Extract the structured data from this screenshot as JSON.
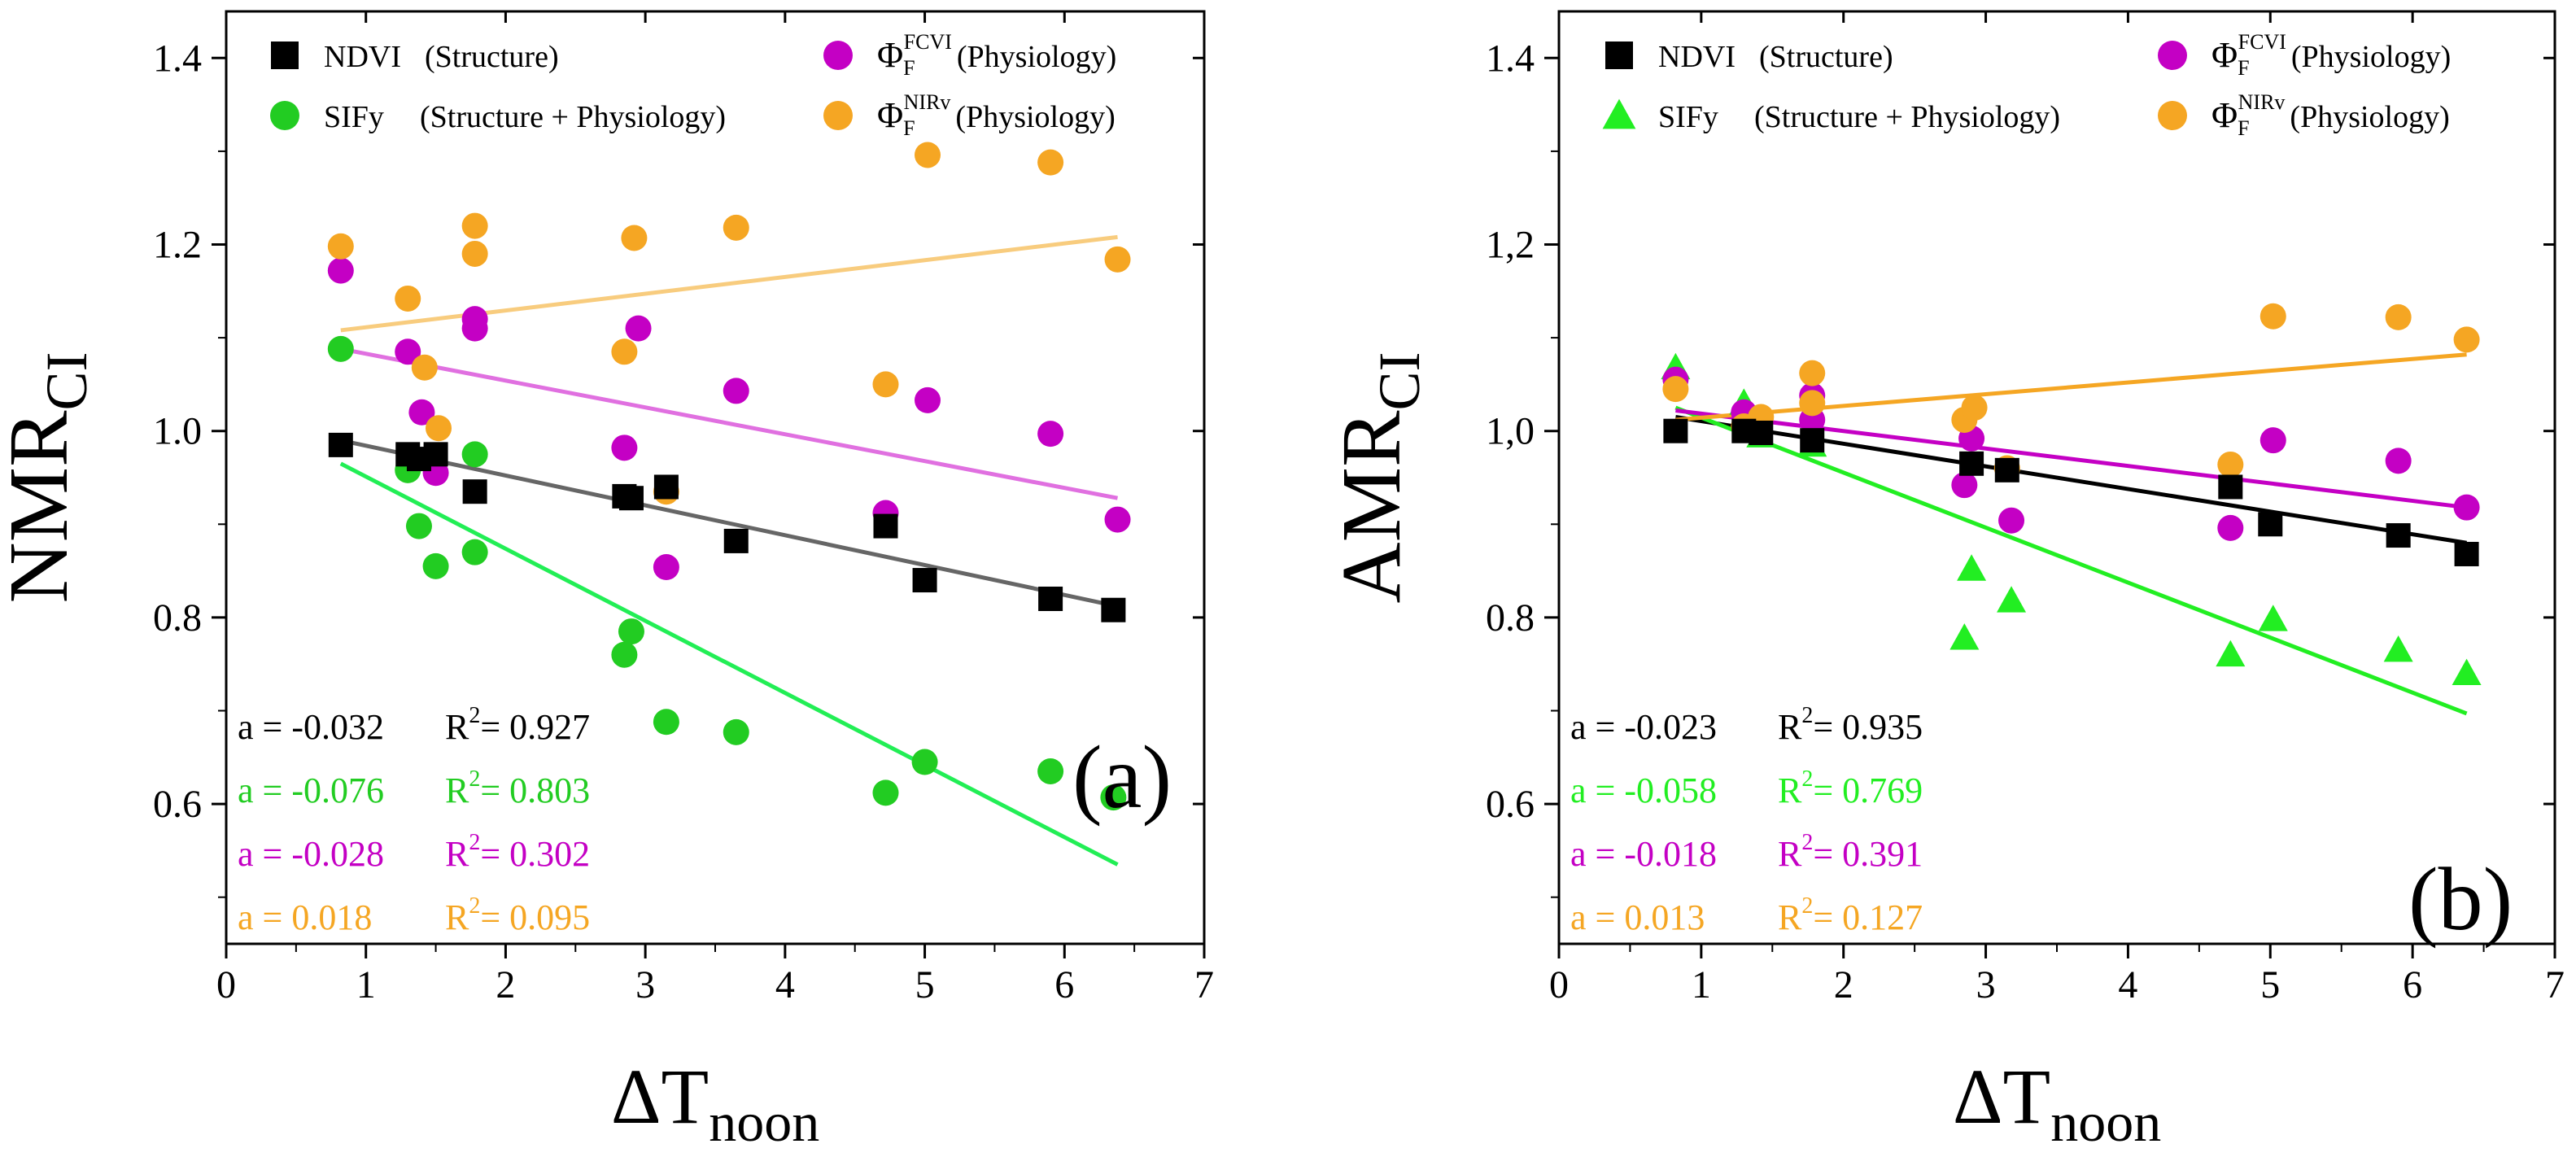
{
  "chart_data": [
    {
      "type": "scatter",
      "panel_label": "(a)",
      "ylabel": "NMR",
      "ylabel_sub": "CI",
      "xlabel": "ΔT",
      "xlabel_sub": "noon",
      "xlim": [
        0,
        7
      ],
      "ylim": [
        0.45,
        1.45
      ],
      "xticks": [
        0,
        1,
        2,
        3,
        4,
        5,
        6,
        7
      ],
      "yticks": [
        0.6,
        0.8,
        1.0,
        1.2,
        1.4
      ],
      "ytick_labels": [
        "0.6",
        "0.8",
        "1.0",
        "1.2",
        "1.4"
      ],
      "grid": false,
      "legend_position": "top",
      "series": [
        {
          "key": "ndvi",
          "name": "NDVI",
          "desc": "(Structure)",
          "marker": "square",
          "color": "#000000",
          "line_color": "#666666",
          "x": [
            0.82,
            1.3,
            1.38,
            1.5,
            1.78,
            2.85,
            2.9,
            3.15,
            3.65,
            4.72,
            5.0,
            5.9,
            6.35
          ],
          "y": [
            0.985,
            0.975,
            0.97,
            0.975,
            0.935,
            0.93,
            0.928,
            0.94,
            0.882,
            0.898,
            0.84,
            0.82,
            0.808
          ],
          "fit": {
            "x0": 0.82,
            "y0": 0.99,
            "x1": 6.38,
            "y1": 0.812
          }
        },
        {
          "key": "sify",
          "name": "SIFy",
          "desc": "(Structure + Physiology)",
          "marker": "circle",
          "color": "#22cc22",
          "line_color": "#22ee55",
          "x": [
            0.82,
            1.3,
            1.38,
            1.5,
            1.78,
            1.78,
            2.85,
            2.9,
            3.15,
            3.65,
            4.72,
            5.0,
            5.9,
            6.35
          ],
          "y": [
            1.088,
            0.958,
            0.898,
            0.855,
            0.975,
            0.87,
            0.76,
            0.785,
            0.688,
            0.677,
            0.612,
            0.645,
            0.635,
            0.607
          ],
          "fit": {
            "x0": 0.82,
            "y0": 0.965,
            "x1": 6.38,
            "y1": 0.535
          }
        },
        {
          "key": "fcvi",
          "name": "Φ",
          "sub": "F",
          "sup": "FCVI",
          "desc": "(Physiology)",
          "marker": "circle",
          "color": "#c400c4",
          "line_color": "#e070e0",
          "x": [
            0.82,
            1.3,
            1.4,
            1.5,
            1.78,
            1.78,
            2.85,
            2.95,
            3.15,
            3.65,
            4.72,
            5.02,
            5.9,
            6.38
          ],
          "y": [
            1.172,
            1.085,
            1.02,
            0.955,
            1.12,
            1.11,
            0.982,
            1.11,
            0.854,
            1.043,
            0.912,
            1.033,
            0.997,
            0.905
          ],
          "fit": {
            "x0": 0.82,
            "y0": 1.088,
            "x1": 6.38,
            "y1": 0.928
          }
        },
        {
          "key": "nirv",
          "name": "Φ",
          "sub": "F",
          "sup": "NIRv",
          "desc": "(Physiology)",
          "marker": "circle",
          "color": "#f5a623",
          "line_color": "#f8cc7e",
          "x": [
            0.82,
            1.3,
            1.42,
            1.52,
            1.78,
            1.78,
            2.85,
            2.92,
            3.15,
            3.65,
            4.72,
            5.02,
            5.9,
            6.38
          ],
          "y": [
            1.198,
            1.142,
            1.068,
            1.003,
            1.22,
            1.19,
            1.085,
            1.207,
            0.935,
            1.218,
            1.05,
            1.296,
            1.288,
            1.184
          ],
          "fit": {
            "x0": 0.82,
            "y0": 1.108,
            "x1": 6.38,
            "y1": 1.208
          }
        }
      ],
      "annotations": [
        {
          "key": "ndvi",
          "a_text": "a = -0.032",
          "r2_text": "= 0.927"
        },
        {
          "key": "sify",
          "a_text": "a = -0.076",
          "r2_text": "= 0.803"
        },
        {
          "key": "fcvi",
          "a_text": "a = -0.028",
          "r2_text": "= 0.302"
        },
        {
          "key": "nirv",
          "a_text": "a =  0.018",
          "r2_text": "= 0.095"
        }
      ]
    },
    {
      "type": "scatter",
      "panel_label": "(b)",
      "ylabel": "AMR",
      "ylabel_sub": "CI",
      "xlabel": "ΔT",
      "xlabel_sub": "noon",
      "xlim": [
        0,
        7
      ],
      "ylim": [
        0.45,
        1.45
      ],
      "xticks": [
        0,
        1,
        2,
        3,
        4,
        5,
        6,
        7
      ],
      "yticks": [
        0.6,
        0.8,
        1.0,
        1.2,
        1.4
      ],
      "ytick_labels": [
        "0.6",
        "0.8",
        "1,0",
        "1,2",
        "1.4"
      ],
      "grid": false,
      "legend_position": "top",
      "series": [
        {
          "key": "ndvi",
          "name": "NDVI",
          "desc": "(Structure)",
          "marker": "square",
          "color": "#000000",
          "line_color": "#000000",
          "x": [
            0.82,
            1.3,
            1.42,
            1.78,
            2.9,
            3.15,
            4.72,
            5.0,
            5.9,
            6.38
          ],
          "y": [
            1.0,
            1.0,
            0.998,
            0.99,
            0.965,
            0.958,
            0.94,
            0.9,
            0.888,
            0.868
          ],
          "fit": {
            "x0": 0.82,
            "y0": 1.015,
            "x1": 6.38,
            "y1": 0.88
          }
        },
        {
          "key": "sify",
          "name": "SIFy",
          "desc": "(Structure + Physiology)",
          "marker": "triangle",
          "color": "#22ee22",
          "line_color": "#22ee22",
          "x": [
            0.82,
            1.3,
            1.42,
            1.78,
            2.85,
            2.9,
            3.18,
            4.72,
            5.02,
            5.9,
            6.38
          ],
          "y": [
            1.068,
            1.03,
            0.995,
            0.985,
            0.778,
            0.852,
            0.818,
            0.76,
            0.798,
            0.765,
            0.74
          ],
          "fit": {
            "x0": 0.82,
            "y0": 1.025,
            "x1": 6.38,
            "y1": 0.697
          }
        },
        {
          "key": "fcvi",
          "name": "Φ",
          "sub": "F",
          "sup": "FCVI",
          "desc": "(Physiology)",
          "marker": "circle",
          "color": "#c400c4",
          "line_color": "#c400c4",
          "x": [
            0.82,
            1.3,
            1.78,
            1.78,
            2.85,
            2.9,
            3.18,
            4.72,
            5.02,
            5.9,
            6.38
          ],
          "y": [
            1.055,
            1.02,
            1.038,
            1.012,
            0.942,
            0.992,
            0.904,
            0.896,
            0.99,
            0.968,
            0.918
          ],
          "fit": {
            "x0": 0.82,
            "y0": 1.022,
            "x1": 6.38,
            "y1": 0.918
          }
        },
        {
          "key": "nirv",
          "name": "Φ",
          "sub": "F",
          "sup": "NIRv",
          "desc": "(Physiology)",
          "marker": "circle",
          "color": "#f5a623",
          "line_color": "#f5a623",
          "x": [
            0.82,
            1.3,
            1.42,
            1.78,
            1.78,
            2.85,
            2.92,
            3.15,
            4.72,
            5.02,
            5.9,
            6.38
          ],
          "y": [
            1.045,
            1.005,
            1.015,
            1.062,
            1.03,
            1.012,
            1.025,
            0.96,
            0.964,
            1.123,
            1.122,
            1.098
          ],
          "fit": {
            "x0": 0.82,
            "y0": 1.012,
            "x1": 6.38,
            "y1": 1.082
          }
        }
      ],
      "annotations": [
        {
          "key": "ndvi",
          "a_text": "a = -0.023",
          "r2_text": "= 0.935"
        },
        {
          "key": "sify",
          "a_text": "a = -0.058",
          "r2_text": "= 0.769"
        },
        {
          "key": "fcvi",
          "a_text": "a = -0.018",
          "r2_text": "= 0.391"
        },
        {
          "key": "nirv",
          "a_text": "a =  0.013",
          "r2_text": "= 0.127"
        }
      ]
    }
  ]
}
